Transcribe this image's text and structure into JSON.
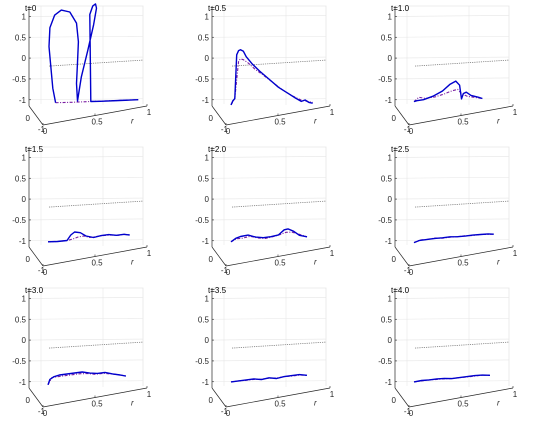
{
  "figure": {
    "panel_count": 9,
    "axis_label_r": "r",
    "z_ticks": [
      "1",
      "0.5",
      "0",
      "-0.5",
      "-1"
    ],
    "r_ticks": [
      "0",
      "0.5",
      "1"
    ],
    "y_ticks": [
      "0",
      "-1"
    ],
    "colors": {
      "solid": "#0000cc",
      "dashed": "#7b1fa2",
      "reference": "#7f7f7f",
      "axes": "#262626",
      "grid": "#e6e6e6"
    }
  },
  "chart_data": [
    {
      "type": "line",
      "title": "t=0",
      "zlim": [
        -1.15,
        1.25
      ],
      "series": [
        {
          "name": "",
          "style": "solid",
          "r": [
            0.08,
            0.05,
            0.03,
            0.01,
            0.02,
            0.07,
            0.14,
            0.23,
            0.3,
            0.32,
            0.31,
            0.3,
            0.31,
            0.35,
            0.42,
            0.48,
            0.51,
            0.5,
            0.47,
            0.44,
            0.45,
            0.55,
            0.75,
            0.95
          ],
          "z": [
            -1.05,
            -0.7,
            -0.2,
            0.3,
            0.75,
            1.05,
            1.17,
            1.12,
            0.85,
            0.4,
            -0.1,
            -0.6,
            -1.02,
            -0.45,
            0.2,
            0.8,
            1.2,
            1.3,
            1.25,
            1.05,
            -1.04,
            -1.04,
            -1.03,
            -1.02
          ]
        },
        {
          "name": "",
          "style": "dashed",
          "r": [
            0.08,
            0.25,
            0.45,
            0.7,
            0.95
          ],
          "z": [
            -1.05,
            -1.05,
            -1.04,
            -1.03,
            -1.02
          ]
        }
      ]
    },
    {
      "type": "line",
      "title": "t=0.5",
      "zlim": [
        -1.15,
        1.25
      ],
      "series": [
        {
          "name": "",
          "style": "solid",
          "r": [
            0.0,
            0.02,
            0.04,
            0.05,
            0.06,
            0.08,
            0.1,
            0.13,
            0.16,
            0.22,
            0.3,
            0.4,
            0.5,
            0.6,
            0.68,
            0.74,
            0.78,
            0.82,
            0.86
          ],
          "z": [
            -1.1,
            -1.0,
            -0.95,
            -0.4,
            0.1,
            0.2,
            0.22,
            0.18,
            0.05,
            -0.12,
            -0.3,
            -0.5,
            -0.7,
            -0.85,
            -0.97,
            -1.05,
            -1.02,
            -1.08,
            -1.1
          ]
        },
        {
          "name": "",
          "style": "dashed",
          "r": [
            0.0,
            0.04,
            0.06,
            0.08,
            0.1,
            0.13,
            0.18,
            0.25,
            0.35,
            0.45,
            0.55,
            0.65,
            0.74,
            0.82,
            0.86
          ],
          "z": [
            -1.1,
            -0.95,
            -0.5,
            -0.05,
            0.0,
            -0.02,
            -0.1,
            -0.25,
            -0.42,
            -0.6,
            -0.78,
            -0.92,
            -1.02,
            -1.06,
            -1.08
          ]
        }
      ]
    },
    {
      "type": "line",
      "title": "t=1.0",
      "zlim": [
        -1.15,
        1.25
      ],
      "series": [
        {
          "name": "",
          "style": "solid",
          "r": [
            0.0,
            0.03,
            0.1,
            0.2,
            0.3,
            0.38,
            0.44,
            0.48,
            0.5,
            0.52,
            0.55,
            0.6,
            0.68,
            0.72
          ],
          "z": [
            -1.02,
            -1.0,
            -0.98,
            -0.9,
            -0.78,
            -0.62,
            -0.55,
            -0.65,
            -0.98,
            -0.85,
            -0.82,
            -0.9,
            -0.95,
            -0.98
          ]
        },
        {
          "name": "",
          "style": "dashed",
          "r": [
            0.0,
            0.05,
            0.12,
            0.22,
            0.32,
            0.4,
            0.46,
            0.5,
            0.56,
            0.64,
            0.72
          ],
          "z": [
            -1.02,
            -0.92,
            -0.95,
            -0.92,
            -0.85,
            -0.78,
            -0.75,
            -0.85,
            -0.92,
            -0.95,
            -0.98
          ]
        }
      ]
    },
    {
      "type": "line",
      "title": "t=1.5",
      "zlim": [
        -1.15,
        1.25
      ],
      "series": [
        {
          "name": "",
          "style": "solid",
          "r": [
            0.0,
            0.1,
            0.2,
            0.24,
            0.28,
            0.34,
            0.4,
            0.48,
            0.56,
            0.64,
            0.72,
            0.8,
            0.86
          ],
          "z": [
            -1.0,
            -1.0,
            -0.98,
            -0.85,
            -0.78,
            -0.8,
            -0.88,
            -0.92,
            -0.88,
            -0.86,
            -0.88,
            -0.86,
            -0.88
          ]
        },
        {
          "name": "",
          "style": "dashed",
          "r": [
            0.0,
            0.1,
            0.2,
            0.26,
            0.32,
            0.38,
            0.44,
            0.5,
            0.58,
            0.66,
            0.74,
            0.8,
            0.86
          ],
          "z": [
            -1.0,
            -1.0,
            -0.98,
            -0.95,
            -0.9,
            -0.88,
            -0.92,
            -0.9,
            -0.88,
            -0.87,
            -0.88,
            -0.86,
            -0.88
          ]
        }
      ]
    },
    {
      "type": "line",
      "title": "t=2.0",
      "zlim": [
        -1.15,
        1.25
      ],
      "series": [
        {
          "name": "",
          "style": "solid",
          "r": [
            0.0,
            0.05,
            0.1,
            0.18,
            0.26,
            0.34,
            0.42,
            0.5,
            0.56,
            0.6,
            0.66,
            0.72,
            0.8
          ],
          "z": [
            -1.0,
            -0.92,
            -0.88,
            -0.85,
            -0.9,
            -0.92,
            -0.9,
            -0.86,
            -0.74,
            -0.72,
            -0.78,
            -0.88,
            -0.92
          ]
        },
        {
          "name": "",
          "style": "dashed",
          "r": [
            0.0,
            0.06,
            0.12,
            0.2,
            0.28,
            0.36,
            0.44,
            0.52,
            0.58,
            0.64,
            0.7,
            0.8
          ],
          "z": [
            -1.0,
            -0.93,
            -0.92,
            -0.88,
            -0.92,
            -0.94,
            -0.9,
            -0.85,
            -0.8,
            -0.8,
            -0.84,
            -0.92
          ]
        }
      ]
    },
    {
      "type": "line",
      "title": "t=2.5",
      "zlim": [
        -1.15,
        1.25
      ],
      "series": [
        {
          "name": "",
          "style": "solid",
          "r": [
            0.0,
            0.06,
            0.14,
            0.22,
            0.3,
            0.38,
            0.46,
            0.54,
            0.62,
            0.7,
            0.78,
            0.84
          ],
          "z": [
            -1.02,
            -0.97,
            -0.95,
            -0.93,
            -0.92,
            -0.9,
            -0.9,
            -0.89,
            -0.87,
            -0.86,
            -0.85,
            -0.86
          ]
        },
        {
          "name": "",
          "style": "dashed",
          "r": [
            0.0,
            0.06,
            0.14,
            0.22,
            0.3,
            0.38,
            0.46,
            0.54,
            0.62,
            0.7,
            0.78,
            0.84
          ],
          "z": [
            -1.02,
            -0.96,
            -0.95,
            -0.92,
            -0.93,
            -0.91,
            -0.9,
            -0.88,
            -0.88,
            -0.86,
            -0.86,
            -0.86
          ]
        }
      ]
    },
    {
      "type": "line",
      "title": "t=3.0",
      "zlim": [
        -1.15,
        1.25
      ],
      "series": [
        {
          "name": "",
          "style": "solid",
          "r": [
            0.0,
            0.02,
            0.06,
            0.12,
            0.2,
            0.28,
            0.36,
            0.44,
            0.52,
            0.6,
            0.68,
            0.76,
            0.82
          ],
          "z": [
            -1.05,
            -0.92,
            -0.86,
            -0.82,
            -0.8,
            -0.78,
            -0.76,
            -0.79,
            -0.8,
            -0.78,
            -0.82,
            -0.85,
            -0.88
          ]
        },
        {
          "name": "",
          "style": "dashed",
          "r": [
            0.0,
            0.04,
            0.1,
            0.18,
            0.26,
            0.34,
            0.42,
            0.5,
            0.58,
            0.66,
            0.74,
            0.82
          ],
          "z": [
            -1.05,
            -0.88,
            -0.86,
            -0.84,
            -0.82,
            -0.8,
            -0.8,
            -0.82,
            -0.8,
            -0.82,
            -0.84,
            -0.88
          ]
        }
      ]
    },
    {
      "type": "line",
      "title": "t=3.5",
      "zlim": [
        -1.15,
        1.25
      ],
      "series": [
        {
          "name": "",
          "style": "solid",
          "r": [
            0.0,
            0.08,
            0.16,
            0.24,
            0.32,
            0.4,
            0.48,
            0.56,
            0.64,
            0.72,
            0.8
          ],
          "z": [
            -0.98,
            -0.96,
            -0.94,
            -0.92,
            -0.94,
            -0.9,
            -0.92,
            -0.88,
            -0.86,
            -0.84,
            -0.86
          ]
        },
        {
          "name": "",
          "style": "dashed",
          "r": [
            0.0,
            0.08,
            0.16,
            0.24,
            0.32,
            0.4,
            0.48,
            0.56,
            0.64,
            0.72,
            0.8
          ],
          "z": [
            -0.98,
            -0.96,
            -0.95,
            -0.93,
            -0.93,
            -0.91,
            -0.91,
            -0.88,
            -0.87,
            -0.85,
            -0.86
          ]
        }
      ]
    },
    {
      "type": "line",
      "title": "t=4.0",
      "zlim": [
        -1.15,
        1.25
      ],
      "series": [
        {
          "name": "",
          "style": "solid",
          "r": [
            0.0,
            0.08,
            0.16,
            0.24,
            0.32,
            0.4,
            0.48,
            0.56,
            0.64,
            0.72,
            0.8
          ],
          "z": [
            -0.98,
            -0.95,
            -0.94,
            -0.92,
            -0.91,
            -0.92,
            -0.9,
            -0.88,
            -0.86,
            -0.85,
            -0.86
          ]
        },
        {
          "name": "",
          "style": "dashed",
          "r": [
            0.0,
            0.08,
            0.16,
            0.24,
            0.32,
            0.4,
            0.48,
            0.56,
            0.64,
            0.72,
            0.8
          ],
          "z": [
            -0.98,
            -0.96,
            -0.94,
            -0.93,
            -0.92,
            -0.92,
            -0.9,
            -0.89,
            -0.87,
            -0.85,
            -0.86
          ]
        }
      ]
    }
  ]
}
